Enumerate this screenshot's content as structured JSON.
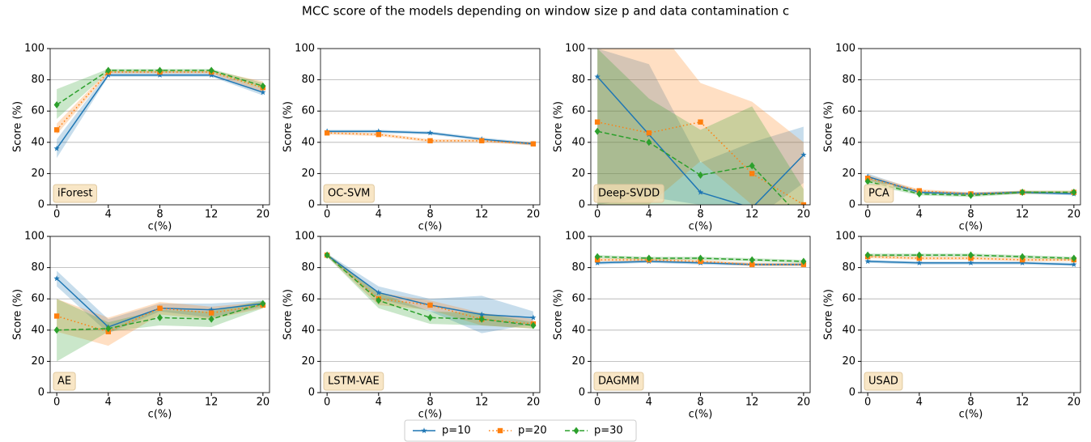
{
  "title": "MCC score of the models depending on window size p and data contamination c",
  "chart_data": [
    {
      "type": "line",
      "title": "iForest",
      "xlabel": "c(%)",
      "ylabel": "Score (%)",
      "categories": [
        "0",
        "4",
        "8",
        "12",
        "20"
      ],
      "ylim": [
        0,
        100
      ],
      "yticks": [
        0,
        20,
        40,
        60,
        80,
        100
      ],
      "grid": true,
      "series": [
        {
          "name": "p=10",
          "color": "#1f77b4",
          "values": [
            36,
            83,
            83,
            83,
            72
          ],
          "lower": [
            30,
            82,
            82,
            82,
            70
          ],
          "upper": [
            42,
            85,
            85,
            85,
            74
          ]
        },
        {
          "name": "p=20",
          "color": "#ff7f0e",
          "values": [
            48,
            85,
            85,
            85,
            75
          ],
          "lower": [
            45,
            84,
            84,
            84,
            72
          ],
          "upper": [
            52,
            86,
            86,
            86,
            79
          ]
        },
        {
          "name": "p=30",
          "color": "#2ca02c",
          "values": [
            64,
            86,
            86,
            86,
            76
          ],
          "lower": [
            55,
            85,
            85,
            85,
            74
          ],
          "upper": [
            74,
            87,
            87,
            87,
            78
          ]
        }
      ]
    },
    {
      "type": "line",
      "title": "OC-SVM",
      "xlabel": "c(%)",
      "ylabel": "Score (%)",
      "categories": [
        "0",
        "4",
        "8",
        "12",
        "20"
      ],
      "ylim": [
        0,
        100
      ],
      "yticks": [
        0,
        20,
        40,
        60,
        80,
        100
      ],
      "grid": true,
      "series": [
        {
          "name": "p=10",
          "color": "#1f77b4",
          "values": [
            47,
            47,
            46,
            42,
            39
          ],
          "lower": [
            46,
            46,
            45,
            41,
            38
          ],
          "upper": [
            48,
            48,
            47,
            43,
            40
          ]
        },
        {
          "name": "p=20",
          "color": "#ff7f0e",
          "values": [
            46,
            45,
            41,
            41,
            39
          ],
          "lower": [
            45,
            44,
            40,
            40,
            38
          ],
          "upper": [
            47,
            46,
            42,
            42,
            40
          ]
        }
      ]
    },
    {
      "type": "line",
      "title": "Deep-SVDD",
      "xlabel": "c(%)",
      "ylabel": "Score (%)",
      "categories": [
        "0",
        "4",
        "8",
        "12",
        "20"
      ],
      "ylim": [
        0,
        100
      ],
      "yticks": [
        0,
        20,
        40,
        60,
        80,
        100
      ],
      "grid": true,
      "series": [
        {
          "name": "p=10",
          "color": "#1f77b4",
          "values": [
            82,
            45,
            8,
            -2,
            32
          ],
          "lower": [
            0,
            5,
            0,
            -10,
            14
          ],
          "upper": [
            100,
            90,
            27,
            40,
            50
          ]
        },
        {
          "name": "p=20",
          "color": "#ff7f0e",
          "values": [
            53,
            46,
            53,
            20,
            0
          ],
          "lower": [
            0,
            0,
            28,
            0,
            -30
          ],
          "upper": [
            110,
            120,
            78,
            66,
            40
          ]
        },
        {
          "name": "p=30",
          "color": "#2ca02c",
          "values": [
            47,
            40,
            19,
            25,
            -10
          ],
          "lower": [
            0,
            0,
            0,
            0,
            -20
          ],
          "upper": [
            100,
            68,
            48,
            63,
            10
          ]
        }
      ]
    },
    {
      "type": "line",
      "title": "PCA",
      "xlabel": "c(%)",
      "ylabel": "Score (%)",
      "categories": [
        "0",
        "4",
        "8",
        "12",
        "20"
      ],
      "ylim": [
        0,
        100
      ],
      "yticks": [
        0,
        20,
        40,
        60,
        80,
        100
      ],
      "grid": true,
      "series": [
        {
          "name": "p=10",
          "color": "#1f77b4",
          "values": [
            18,
            8,
            7,
            8,
            7
          ],
          "lower": [
            16,
            7,
            6,
            7,
            6
          ],
          "upper": [
            20,
            9,
            8,
            9,
            8
          ]
        },
        {
          "name": "p=20",
          "color": "#ff7f0e",
          "values": [
            17,
            9,
            7,
            8,
            8
          ],
          "lower": [
            15,
            8,
            6,
            7,
            7
          ],
          "upper": [
            19,
            10,
            8,
            9,
            9
          ]
        },
        {
          "name": "p=30",
          "color": "#2ca02c",
          "values": [
            15,
            7,
            6,
            8,
            8
          ],
          "lower": [
            13,
            6,
            5,
            7,
            7
          ],
          "upper": [
            17,
            8,
            7,
            9,
            9
          ]
        }
      ]
    },
    {
      "type": "line",
      "title": "AE",
      "xlabel": "c(%)",
      "ylabel": "Score (%)",
      "categories": [
        "0",
        "4",
        "8",
        "12",
        "20"
      ],
      "ylim": [
        0,
        100
      ],
      "yticks": [
        0,
        20,
        40,
        60,
        80,
        100
      ],
      "grid": true,
      "series": [
        {
          "name": "p=10",
          "color": "#1f77b4",
          "values": [
            73,
            42,
            54,
            53,
            57
          ],
          "lower": [
            68,
            38,
            52,
            48,
            55
          ],
          "upper": [
            78,
            47,
            57,
            57,
            59
          ]
        },
        {
          "name": "p=20",
          "color": "#ff7f0e",
          "values": [
            49,
            39,
            54,
            51,
            56
          ],
          "lower": [
            39,
            30,
            50,
            47,
            54
          ],
          "upper": [
            60,
            48,
            58,
            55,
            58
          ]
        },
        {
          "name": "p=30",
          "color": "#2ca02c",
          "values": [
            40,
            41,
            48,
            47,
            57
          ],
          "lower": [
            20,
            39,
            43,
            42,
            54
          ],
          "upper": [
            60,
            45,
            53,
            52,
            59
          ]
        }
      ]
    },
    {
      "type": "line",
      "title": "LSTM-VAE",
      "xlabel": "c(%)",
      "ylabel": "Score (%)",
      "categories": [
        "0",
        "4",
        "8",
        "12",
        "20"
      ],
      "ylim": [
        0,
        100
      ],
      "yticks": [
        0,
        20,
        40,
        60,
        80,
        100
      ],
      "grid": true,
      "series": [
        {
          "name": "p=10",
          "color": "#1f77b4",
          "values": [
            88,
            64,
            56,
            50,
            48
          ],
          "lower": [
            87,
            60,
            52,
            38,
            44
          ],
          "upper": [
            89,
            68,
            60,
            62,
            52
          ]
        },
        {
          "name": "p=20",
          "color": "#ff7f0e",
          "values": [
            88,
            60,
            56,
            47,
            44
          ],
          "lower": [
            87,
            56,
            53,
            43,
            41
          ],
          "upper": [
            89,
            64,
            59,
            51,
            47
          ]
        },
        {
          "name": "p=30",
          "color": "#2ca02c",
          "values": [
            88,
            59,
            48,
            47,
            43
          ],
          "lower": [
            87,
            54,
            44,
            43,
            41
          ],
          "upper": [
            89,
            64,
            52,
            51,
            45
          ]
        }
      ]
    },
    {
      "type": "line",
      "title": "DAGMM",
      "xlabel": "c(%)",
      "ylabel": "Score (%)",
      "categories": [
        "0",
        "4",
        "8",
        "12",
        "20"
      ],
      "ylim": [
        0,
        100
      ],
      "yticks": [
        0,
        20,
        40,
        60,
        80,
        100
      ],
      "grid": true,
      "series": [
        {
          "name": "p=10",
          "color": "#1f77b4",
          "values": [
            83,
            84,
            83,
            82,
            82
          ],
          "lower": [
            82,
            83,
            82,
            81,
            81
          ],
          "upper": [
            84,
            85,
            84,
            83,
            83
          ]
        },
        {
          "name": "p=20",
          "color": "#ff7f0e",
          "values": [
            85,
            85,
            84,
            82,
            82
          ],
          "lower": [
            84,
            84,
            83,
            81,
            81
          ],
          "upper": [
            86,
            86,
            85,
            83,
            83
          ]
        },
        {
          "name": "p=30",
          "color": "#2ca02c",
          "values": [
            87,
            86,
            86,
            85,
            84
          ],
          "lower": [
            86,
            85,
            85,
            84,
            83
          ],
          "upper": [
            88,
            87,
            87,
            86,
            85
          ]
        }
      ]
    },
    {
      "type": "line",
      "title": "USAD",
      "xlabel": "c(%)",
      "ylabel": "Score (%)",
      "categories": [
        "0",
        "4",
        "8",
        "12",
        "20"
      ],
      "ylim": [
        0,
        100
      ],
      "yticks": [
        0,
        20,
        40,
        60,
        80,
        100
      ],
      "grid": true,
      "series": [
        {
          "name": "p=10",
          "color": "#1f77b4",
          "values": [
            84,
            83,
            83,
            83,
            82
          ],
          "lower": [
            83,
            82,
            82,
            82,
            81
          ],
          "upper": [
            85,
            84,
            84,
            84,
            83
          ]
        },
        {
          "name": "p=20",
          "color": "#ff7f0e",
          "values": [
            87,
            86,
            86,
            85,
            85
          ],
          "lower": [
            86,
            85,
            85,
            84,
            84
          ],
          "upper": [
            88,
            87,
            87,
            86,
            86
          ]
        },
        {
          "name": "p=30",
          "color": "#2ca02c",
          "values": [
            88,
            88,
            88,
            87,
            86
          ],
          "lower": [
            87,
            87,
            87,
            86,
            85
          ],
          "upper": [
            89,
            89,
            89,
            88,
            87
          ]
        }
      ]
    }
  ]
}
